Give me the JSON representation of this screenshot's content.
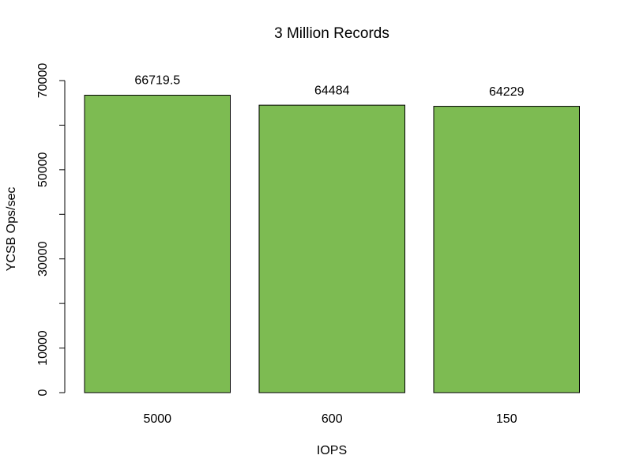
{
  "chart_data": {
    "type": "bar",
    "title": "3 Million Records",
    "x_label": "IOPS",
    "y_label": "YCSB Ops/sec",
    "categories": [
      "5000",
      "600",
      "150"
    ],
    "values": [
      66719.5,
      64484,
      64229
    ],
    "color": "#7dbb52",
    "ylim": [
      0,
      70000
    ],
    "yticks": [
      0,
      10000,
      {
        "value": 20000,
        "label": null
      },
      30000,
      {
        "value": 40000,
        "label": null
      },
      50000,
      {
        "value": 60000,
        "label": null
      },
      70000
    ],
    "grid": false
  }
}
